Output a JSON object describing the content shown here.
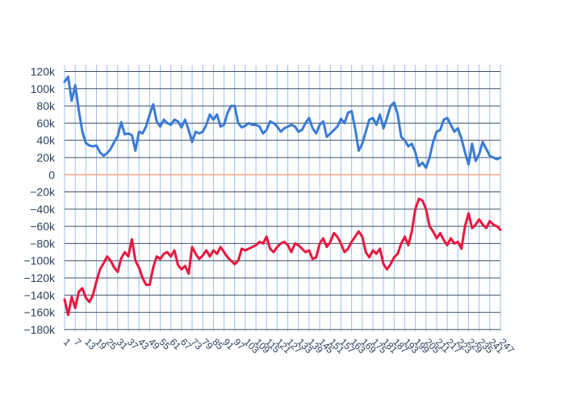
{
  "chart_data": {
    "type": "line",
    "title": "",
    "xlabel": "",
    "ylabel": "",
    "ylim": [
      -182000,
      128000
    ],
    "y_ticks": [
      120000,
      100000,
      80000,
      60000,
      40000,
      20000,
      0,
      -20000,
      -40000,
      -60000,
      -80000,
      -100000,
      -120000,
      -140000,
      -160000,
      -180000
    ],
    "y_tick_labels": [
      "120k",
      "100k",
      "80k",
      "60k",
      "40k",
      "20k",
      "0",
      "−20k",
      "−40k",
      "−60k",
      "−80k",
      "−100k",
      "−120k",
      "−140k",
      "−160k",
      "−180k"
    ],
    "x_range": [
      1,
      247
    ],
    "x_ticks": [
      1,
      7,
      13,
      19,
      25,
      31,
      37,
      43,
      49,
      55,
      61,
      67,
      73,
      79,
      85,
      91,
      97,
      103,
      109,
      115,
      121,
      127,
      133,
      139,
      145,
      151,
      157,
      163,
      169,
      175,
      181,
      187,
      193,
      199,
      205,
      211,
      217,
      223,
      229,
      235,
      241,
      247
    ],
    "grid": true,
    "legend": "none",
    "zero_line_color": "#f2a582",
    "series": [
      {
        "color": "#3a7bd5",
        "x": [
          1,
          3,
          5,
          7,
          9,
          11,
          13,
          15,
          17,
          19,
          21,
          23,
          25,
          27,
          29,
          31,
          33,
          35,
          37,
          39,
          41,
          43,
          45,
          47,
          49,
          51,
          53,
          55,
          57,
          59,
          61,
          63,
          65,
          67,
          69,
          71,
          73,
          75,
          77,
          79,
          81,
          83,
          85,
          87,
          89,
          91,
          93,
          95,
          97,
          99,
          101,
          103,
          105,
          107,
          109,
          111,
          113,
          115,
          117,
          119,
          121,
          123,
          125,
          127,
          129,
          131,
          133,
          135,
          137,
          139,
          141,
          143,
          145,
          147,
          149,
          151,
          153,
          155,
          157,
          159,
          161,
          163,
          165,
          167,
          169,
          171,
          173,
          175,
          177,
          179,
          181,
          183,
          185,
          187,
          189,
          191,
          193,
          195,
          197,
          199,
          201,
          203,
          205,
          207,
          209,
          211,
          213,
          215,
          217,
          219,
          221,
          223,
          225,
          227,
          229,
          231,
          233,
          235,
          237,
          239,
          241,
          243,
          245,
          247
        ],
        "y": [
          108000,
          114000,
          86000,
          104000,
          75000,
          50000,
          37000,
          34000,
          33000,
          34000,
          26000,
          22000,
          25000,
          30000,
          38000,
          45000,
          61000,
          47000,
          48000,
          46000,
          28000,
          50000,
          48000,
          56000,
          70000,
          82000,
          62000,
          56000,
          64000,
          60000,
          58000,
          64000,
          62000,
          55000,
          64000,
          52000,
          38000,
          50000,
          48000,
          50000,
          58000,
          70000,
          64000,
          70000,
          56000,
          58000,
          72000,
          80000,
          80000,
          60000,
          55000,
          57000,
          60000,
          58000,
          58000,
          56000,
          48000,
          52000,
          62000,
          60000,
          56000,
          50000,
          54000,
          56000,
          58000,
          56000,
          50000,
          52000,
          60000,
          66000,
          54000,
          48000,
          58000,
          62000,
          44000,
          48000,
          52000,
          56000,
          65000,
          60000,
          72000,
          74000,
          54000,
          28000,
          36000,
          50000,
          64000,
          66000,
          58000,
          70000,
          54000,
          66000,
          80000,
          84000,
          70000,
          44000,
          40000,
          33000,
          36000,
          26000,
          10000,
          14000,
          8000,
          20000,
          38000,
          50000,
          52000,
          64000,
          66000,
          58000,
          50000,
          54000,
          42000,
          26000,
          12000,
          36000,
          16000,
          24000,
          38000,
          30000,
          22000,
          20000,
          18000,
          20000
        ]
      },
      {
        "color": "#e8173f",
        "x": [
          1,
          3,
          5,
          7,
          9,
          11,
          13,
          15,
          17,
          19,
          21,
          23,
          25,
          27,
          29,
          31,
          33,
          35,
          37,
          39,
          41,
          43,
          45,
          47,
          49,
          51,
          53,
          55,
          57,
          59,
          61,
          63,
          65,
          67,
          69,
          71,
          73,
          75,
          77,
          79,
          81,
          83,
          85,
          87,
          89,
          91,
          93,
          95,
          97,
          99,
          101,
          103,
          105,
          107,
          109,
          111,
          113,
          115,
          117,
          119,
          121,
          123,
          125,
          127,
          129,
          131,
          133,
          135,
          137,
          139,
          141,
          143,
          145,
          147,
          149,
          151,
          153,
          155,
          157,
          159,
          161,
          163,
          165,
          167,
          169,
          171,
          173,
          175,
          177,
          179,
          181,
          183,
          185,
          187,
          189,
          191,
          193,
          195,
          197,
          199,
          201,
          203,
          205,
          207,
          209,
          211,
          213,
          215,
          217,
          219,
          221,
          223,
          225,
          227,
          229,
          231,
          233,
          235,
          237,
          239,
          241,
          243,
          245,
          247
        ],
        "y": [
          -145000,
          -163000,
          -142000,
          -155000,
          -136000,
          -132000,
          -143000,
          -148000,
          -140000,
          -124000,
          -110000,
          -103000,
          -95000,
          -100000,
          -108000,
          -113000,
          -97000,
          -90000,
          -95000,
          -75000,
          -100000,
          -108000,
          -120000,
          -128000,
          -128000,
          -108000,
          -95000,
          -98000,
          -92000,
          -90000,
          -95000,
          -88000,
          -105000,
          -110000,
          -106000,
          -115000,
          -84000,
          -92000,
          -98000,
          -94000,
          -88000,
          -95000,
          -88000,
          -92000,
          -84000,
          -90000,
          -96000,
          -100000,
          -104000,
          -100000,
          -86000,
          -88000,
          -86000,
          -84000,
          -82000,
          -78000,
          -80000,
          -72000,
          -86000,
          -90000,
          -84000,
          -80000,
          -78000,
          -82000,
          -90000,
          -80000,
          -82000,
          -86000,
          -90000,
          -88000,
          -98000,
          -96000,
          -80000,
          -74000,
          -84000,
          -78000,
          -68000,
          -72000,
          -80000,
          -90000,
          -86000,
          -78000,
          -72000,
          -66000,
          -72000,
          -90000,
          -96000,
          -88000,
          -92000,
          -86000,
          -104000,
          -110000,
          -104000,
          -96000,
          -92000,
          -80000,
          -72000,
          -82000,
          -66000,
          -40000,
          -28000,
          -30000,
          -40000,
          -60000,
          -66000,
          -74000,
          -68000,
          -76000,
          -82000,
          -74000,
          -80000,
          -78000,
          -86000,
          -60000,
          -45000,
          -62000,
          -58000,
          -52000,
          -58000,
          -62000,
          -54000,
          -58000,
          -60000,
          -64000
        ]
      }
    ]
  }
}
